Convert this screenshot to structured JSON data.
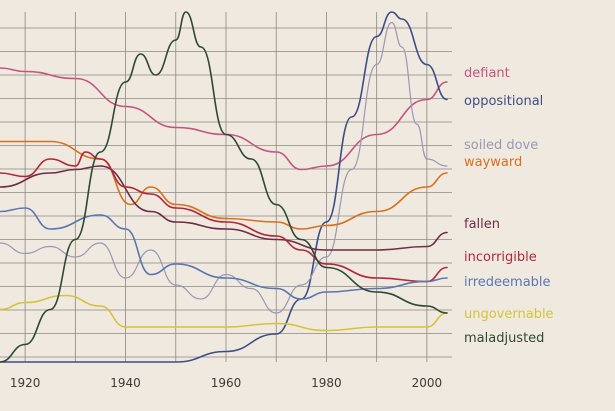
{
  "chart_data": {
    "type": "line",
    "title": "",
    "xlabel": "",
    "ylabel": "",
    "grid": true,
    "legend_placement": "right",
    "xlim": [
      1915,
      2005
    ],
    "ylim": [
      0,
      100
    ],
    "x_ticks": [
      1920,
      1940,
      1960,
      1980,
      2000
    ],
    "series": [
      {
        "name": "defiant",
        "color": "#c4557e",
        "x": [
          1915,
          1920,
          1930,
          1940,
          1950,
          1960,
          1970,
          1975,
          1980,
          1990,
          2000,
          2004
        ],
        "y": [
          84,
          83,
          81,
          73,
          67,
          65,
          60,
          55,
          56,
          65,
          75,
          80
        ]
      },
      {
        "name": "oppositional",
        "color": "#3b4f86",
        "x": [
          1915,
          1950,
          1960,
          1970,
          1975,
          1980,
          1985,
          1990,
          1993,
          1995,
          2000,
          2004
        ],
        "y": [
          0,
          0,
          3,
          8,
          18,
          40,
          70,
          93,
          100,
          98,
          85,
          75
        ]
      },
      {
        "name": "soiled dove",
        "color": "#9a98b4",
        "x": [
          1915,
          1920,
          1925,
          1930,
          1935,
          1940,
          1945,
          1950,
          1955,
          1960,
          1965,
          1970,
          1975,
          1980,
          1985,
          1990,
          1993,
          1995,
          1998,
          2000,
          2004
        ],
        "y": [
          34,
          31,
          33,
          30,
          34,
          24,
          32,
          22,
          18,
          25,
          21,
          14,
          22,
          30,
          55,
          85,
          97,
          90,
          68,
          58,
          56
        ]
      },
      {
        "name": "wayward",
        "color": "#d8701e",
        "x": [
          1915,
          1925,
          1935,
          1941,
          1945,
          1950,
          1960,
          1970,
          1975,
          1980,
          1990,
          2000,
          2004
        ],
        "y": [
          63,
          63,
          58,
          45,
          50,
          45,
          41,
          40,
          38,
          39,
          43,
          50,
          54
        ]
      },
      {
        "name": "fallen",
        "color": "#6e2c45",
        "x": [
          1915,
          1925,
          1930,
          1935,
          1945,
          1950,
          1960,
          1970,
          1980,
          1990,
          2000,
          2004
        ],
        "y": [
          50,
          54,
          55,
          56,
          43,
          40,
          38,
          35,
          32,
          32,
          33,
          37
        ]
      },
      {
        "name": "incorrigible",
        "color": "#b0283a",
        "x": [
          1915,
          1920,
          1925,
          1930,
          1932,
          1935,
          1940,
          1945,
          1950,
          1960,
          1970,
          1975,
          1980,
          1990,
          2000,
          2004
        ],
        "y": [
          54,
          53,
          58,
          56,
          60,
          58,
          50,
          48,
          44,
          40,
          36,
          32,
          28,
          24,
          23,
          27
        ]
      },
      {
        "name": "irredeemable",
        "color": "#5a77b0",
        "x": [
          1915,
          1920,
          1925,
          1935,
          1940,
          1945,
          1950,
          1960,
          1970,
          1975,
          1980,
          1990,
          2000,
          2004
        ],
        "y": [
          43,
          44,
          38,
          42,
          38,
          25,
          28,
          24,
          21,
          18,
          20,
          21,
          23,
          24
        ]
      },
      {
        "name": "ungovernable",
        "color": "#d4c43a",
        "x": [
          1915,
          1920,
          1928,
          1935,
          1940,
          1950,
          1960,
          1970,
          1980,
          1990,
          2000,
          2004
        ],
        "y": [
          15,
          17,
          19,
          16,
          10,
          10,
          10,
          11,
          9,
          10,
          10,
          14
        ]
      },
      {
        "name": "maladjusted",
        "color": "#2f4a34",
        "x": [
          1915,
          1920,
          1925,
          1930,
          1935,
          1940,
          1943,
          1946,
          1950,
          1952,
          1955,
          1960,
          1965,
          1970,
          1975,
          1980,
          1990,
          2000,
          2004
        ],
        "y": [
          0,
          5,
          15,
          35,
          60,
          80,
          88,
          82,
          92,
          100,
          90,
          65,
          58,
          45,
          35,
          27,
          20,
          16,
          14
        ]
      }
    ]
  }
}
